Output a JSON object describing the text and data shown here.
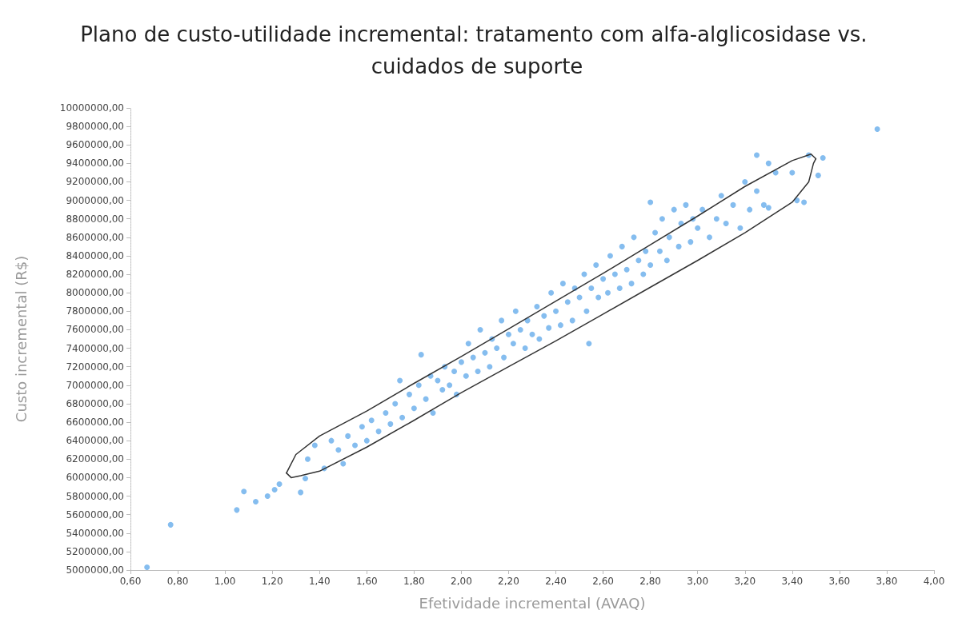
{
  "chart_data": {
    "type": "scatter",
    "title": "Plano de custo-utilidade incremental: tratamento com alfa-alglicosidase vs. cuidados de suporte",
    "xlabel": "Efetividade incremental (AVAQ)",
    "ylabel": "Custo incremental (R$)",
    "marker": "circle",
    "grid": false,
    "xlim": [
      0.6,
      4.0
    ],
    "xticks": [
      {
        "value": 0.6,
        "label": "0,60"
      },
      {
        "value": 0.8,
        "label": "0,80"
      },
      {
        "value": 1.0,
        "label": "1,00"
      },
      {
        "value": 1.2,
        "label": "1,20"
      },
      {
        "value": 1.4,
        "label": "1,40"
      },
      {
        "value": 1.6,
        "label": "1,60"
      },
      {
        "value": 1.8,
        "label": "1,80"
      },
      {
        "value": 2.0,
        "label": "2,00"
      },
      {
        "value": 2.2,
        "label": "2,20"
      },
      {
        "value": 2.4,
        "label": "2,40"
      },
      {
        "value": 2.6,
        "label": "2,60"
      },
      {
        "value": 2.8,
        "label": "2,80"
      },
      {
        "value": 3.0,
        "label": "3,00"
      },
      {
        "value": 3.2,
        "label": "3,20"
      },
      {
        "value": 3.4,
        "label": "3,40"
      },
      {
        "value": 3.6,
        "label": "3,60"
      },
      {
        "value": 3.8,
        "label": "3,80"
      },
      {
        "value": 4.0,
        "label": "4,00"
      }
    ],
    "ylim": [
      5000000,
      10000000
    ],
    "yticks": [
      {
        "value": 5000000,
        "label": "5000000,00"
      },
      {
        "value": 5200000,
        "label": "5200000,00"
      },
      {
        "value": 5400000,
        "label": "5400000,00"
      },
      {
        "value": 5600000,
        "label": "5600000,00"
      },
      {
        "value": 5800000,
        "label": "5800000,00"
      },
      {
        "value": 6000000,
        "label": "6000000,00"
      },
      {
        "value": 6200000,
        "label": "6200000,00"
      },
      {
        "value": 6400000,
        "label": "6400000,00"
      },
      {
        "value": 6600000,
        "label": "6600000,00"
      },
      {
        "value": 6800000,
        "label": "6800000,00"
      },
      {
        "value": 7000000,
        "label": "7000000,00"
      },
      {
        "value": 7200000,
        "label": "7200000,00"
      },
      {
        "value": 7400000,
        "label": "7400000,00"
      },
      {
        "value": 7600000,
        "label": "7600000,00"
      },
      {
        "value": 7800000,
        "label": "7800000,00"
      },
      {
        "value": 8000000,
        "label": "8000000,00"
      },
      {
        "value": 8200000,
        "label": "8200000,00"
      },
      {
        "value": 8400000,
        "label": "8400000,00"
      },
      {
        "value": 8600000,
        "label": "8600000,00"
      },
      {
        "value": 8800000,
        "label": "8800000,00"
      },
      {
        "value": 9000000,
        "label": "9000000,00"
      },
      {
        "value": 9200000,
        "label": "9200000,00"
      },
      {
        "value": 9400000,
        "label": "9400000,00"
      },
      {
        "value": 9600000,
        "label": "9600000,00"
      },
      {
        "value": 9800000,
        "label": "9800000,00"
      },
      {
        "value": 10000000,
        "label": "10000000,00"
      }
    ],
    "series": [
      {
        "color": "#66adeb",
        "x": [
          0.67,
          0.77,
          1.05,
          1.08,
          1.13,
          1.18,
          1.21,
          1.23,
          1.32,
          1.34,
          1.35,
          1.38,
          1.42,
          1.45,
          1.48,
          1.5,
          1.52,
          1.55,
          1.58,
          1.6,
          1.62,
          1.65,
          1.68,
          1.7,
          1.72,
          1.74,
          1.75,
          1.78,
          1.8,
          1.82,
          1.83,
          1.85,
          1.87,
          1.88,
          1.9,
          1.92,
          1.93,
          1.95,
          1.97,
          1.98,
          2.0,
          2.02,
          2.03,
          2.05,
          2.07,
          2.08,
          2.1,
          2.12,
          2.13,
          2.15,
          2.17,
          2.18,
          2.2,
          2.22,
          2.23,
          2.25,
          2.27,
          2.28,
          2.3,
          2.32,
          2.33,
          2.35,
          2.37,
          2.38,
          2.4,
          2.42,
          2.43,
          2.45,
          2.47,
          2.48,
          2.5,
          2.52,
          2.53,
          2.54,
          2.55,
          2.57,
          2.58,
          2.6,
          2.62,
          2.63,
          2.65,
          2.67,
          2.68,
          2.7,
          2.72,
          2.73,
          2.75,
          2.77,
          2.78,
          2.8,
          2.8,
          2.82,
          2.84,
          2.85,
          2.87,
          2.88,
          2.9,
          2.92,
          2.93,
          2.95,
          2.97,
          2.98,
          3.0,
          3.02,
          3.05,
          3.08,
          3.1,
          3.12,
          3.15,
          3.18,
          3.2,
          3.22,
          3.25,
          3.25,
          3.28,
          3.3,
          3.3,
          3.33,
          3.4,
          3.42,
          3.45,
          3.47,
          3.51,
          3.53,
          3.76
        ],
        "values": [
          5030000,
          5490000,
          5650000,
          5850000,
          5740000,
          5800000,
          5870000,
          5930000,
          5840000,
          5990000,
          6200000,
          6350000,
          6100000,
          6400000,
          6300000,
          6150000,
          6450000,
          6350000,
          6550000,
          6400000,
          6620000,
          6500000,
          6700000,
          6580000,
          6800000,
          7050000,
          6650000,
          6900000,
          6750000,
          7000000,
          7330000,
          6850000,
          7100000,
          6700000,
          7050000,
          6950000,
          7200000,
          7000000,
          7150000,
          6900000,
          7250000,
          7100000,
          7450000,
          7300000,
          7150000,
          7600000,
          7350000,
          7200000,
          7500000,
          7400000,
          7700000,
          7300000,
          7550000,
          7450000,
          7800000,
          7600000,
          7400000,
          7700000,
          7550000,
          7850000,
          7500000,
          7750000,
          7620000,
          8000000,
          7800000,
          7650000,
          8100000,
          7900000,
          7700000,
          8050000,
          7950000,
          8200000,
          7800000,
          7450000,
          8050000,
          8300000,
          7950000,
          8150000,
          8000000,
          8400000,
          8200000,
          8050000,
          8500000,
          8250000,
          8100000,
          8600000,
          8350000,
          8200000,
          8450000,
          8980000,
          8300000,
          8650000,
          8450000,
          8800000,
          8350000,
          8600000,
          8900000,
          8500000,
          8750000,
          8950000,
          8550000,
          8800000,
          8700000,
          8900000,
          8600000,
          8800000,
          9050000,
          8750000,
          8950000,
          8700000,
          9200000,
          8900000,
          9100000,
          9490000,
          8950000,
          9400000,
          8920000,
          9300000,
          9300000,
          9000000,
          8980000,
          9490000,
          9270000,
          9460000,
          9770000
        ]
      },
      {
        "type": "line",
        "color": "#333333",
        "marker": "none",
        "x": [
          1.26,
          1.27,
          1.3,
          1.4,
          1.6,
          1.8,
          2.0,
          2.2,
          2.4,
          2.6,
          2.8,
          3.0,
          3.2,
          3.4,
          3.48,
          3.5
        ],
        "values": [
          6050000,
          6100000,
          6250000,
          6450000,
          6720000,
          7020000,
          7310000,
          7610000,
          7910000,
          8210000,
          8520000,
          8830000,
          9150000,
          9430000,
          9500000,
          9450000
        ]
      },
      {
        "type": "line",
        "color": "#333333",
        "marker": "none",
        "x": [
          1.26,
          1.28,
          1.32,
          1.4,
          1.6,
          1.8,
          2.0,
          2.2,
          2.4,
          2.6,
          2.8,
          3.0,
          3.2,
          3.4,
          3.47,
          3.49,
          3.5
        ],
        "values": [
          6050000,
          6000000,
          6020000,
          6070000,
          6330000,
          6620000,
          6920000,
          7200000,
          7480000,
          7770000,
          8060000,
          8350000,
          8650000,
          8980000,
          9200000,
          9400000,
          9450000
        ]
      }
    ]
  }
}
